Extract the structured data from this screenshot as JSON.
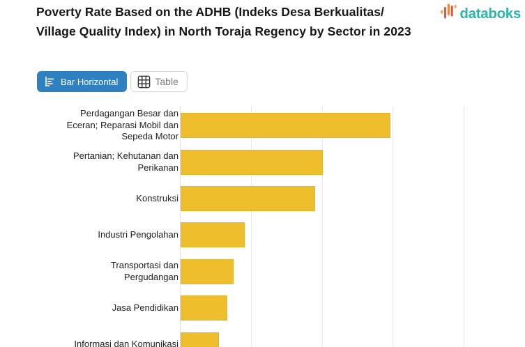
{
  "header": {
    "title": "Poverty Rate Based on the ADHB (Indeks Desa Berkualitas/ Village Quality Index) in North Toraja Regency by Sector in 2023",
    "brand": "databoks"
  },
  "tabs": [
    {
      "label": "Bar Horizontal",
      "active": true
    },
    {
      "label": "Table",
      "active": false
    }
  ],
  "icons": {
    "active_tab": "bar-horizontal-icon",
    "inactive_tab": "table-icon",
    "logo": "databoks-pulse-icon"
  },
  "colors": {
    "accent_blue": "#2F80C0",
    "bar_gold": "#EFBE2C",
    "brand_teal": "#2FB3AB",
    "logo_orange": "#F08233",
    "logo_red": "#E25549",
    "logo_light_orange": "#F4A05C",
    "grid_line": "#E9E9E9",
    "muted_text": "#7A7A7A"
  },
  "chart_data": {
    "type": "bar",
    "orientation": "horizontal",
    "title": "Poverty Rate Based on the ADHB (Indeks Desa Berkualitas/ Village Quality Index) in North Toraja Regency by Sector in 2023",
    "categories": [
      "Perdagangan Besar dan Eceran; Reparasi Mobil dan Sepeda Motor",
      "Pertanian; Kehutanan dan Perikanan",
      "Konstruksi",
      "Industri Pengolahan",
      "Transportasi dan Pergudangan",
      "Jasa Pendidikan",
      "Informasi dan Komunikasi"
    ],
    "values": [
      2.96,
      2.0,
      1.9,
      0.9,
      0.75,
      0.66,
      0.54
    ],
    "value_note": "x-axis tick labels are cropped out of the screenshot; values estimated in vertical-gridline units",
    "xlabel": "",
    "ylabel": "",
    "xlim": [
      0,
      4.86
    ],
    "gridline_units": [
      1,
      2,
      3,
      4
    ],
    "grid": "vertical gridlines on, light gray",
    "legend": false,
    "bar_color": "#EFBE2C",
    "bottom_of_plot_clipped": true
  }
}
